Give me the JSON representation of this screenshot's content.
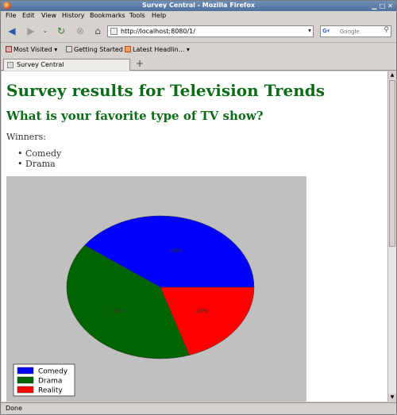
{
  "window": {
    "title": "Survey Central - Mozilla Firefox"
  },
  "menu": [
    "File",
    "Edit",
    "View",
    "History",
    "Bookmarks",
    "Tools",
    "Help"
  ],
  "nav": {
    "url": "http://localhost:8080/1/",
    "search_placeholder": "Google"
  },
  "bookmarks": [
    "Most Visited",
    "Getting Started",
    "Latest Headlin..."
  ],
  "tab": {
    "label": "Survey Central"
  },
  "page": {
    "title": "Survey results for Television Trends",
    "question": "What is your favorite type of TV show?",
    "winners_label": "Winners:",
    "winners": [
      "Comedy",
      "Drama"
    ]
  },
  "chart_data": {
    "type": "pie",
    "categories": [
      "Comedy",
      "Drama",
      "Reality"
    ],
    "values": [
      40,
      40,
      20
    ],
    "colors": [
      "#0000ff",
      "#006400",
      "#ff0000"
    ],
    "slice_labels": [
      "40%",
      "40%",
      "20%"
    ],
    "legend_position": "bottom-left",
    "background": "#c0c0c0"
  },
  "status": {
    "text": "Done"
  }
}
